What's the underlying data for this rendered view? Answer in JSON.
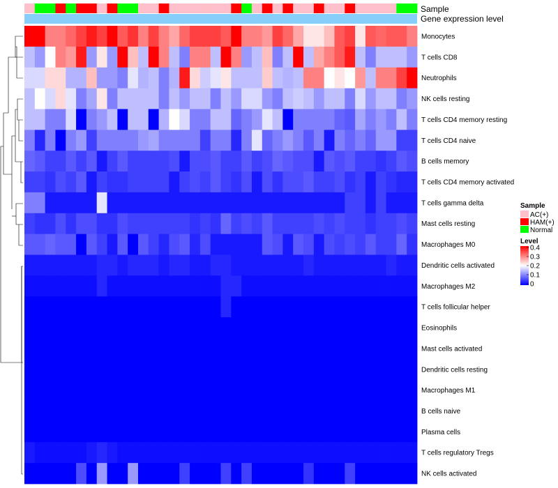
{
  "chart_data": {
    "type": "heatmap",
    "title": "",
    "annotation_labels": {
      "sample": "Sample",
      "expression": "Gene expression level"
    },
    "legend": {
      "sample_title": "Sample",
      "sample_entries": [
        {
          "label": "AC(+)",
          "color": "#ffc0cb"
        },
        {
          "label": "HAM(+)",
          "color": "#ff0000"
        },
        {
          "label": "Normal",
          "color": "#00ff00"
        }
      ],
      "level_title": "Level",
      "level_ticks": [
        "0.4",
        "0.3",
        "0.2",
        "0.1",
        "0"
      ],
      "level_range": [
        0,
        0.4
      ],
      "colors": {
        "low": "#0000ff",
        "mid": "#ffffff",
        "high": "#ff0000",
        "expression_bar": "#87cefa"
      }
    },
    "samples": [
      "AC",
      "N",
      "N",
      "H",
      "N",
      "H",
      "H",
      "AC",
      "H",
      "N",
      "N",
      "AC",
      "AC",
      "H",
      "AC",
      "AC",
      "AC",
      "AC",
      "AC",
      "AC",
      "H",
      "N",
      "AC",
      "H",
      "AC",
      "H",
      "AC",
      "AC",
      "H",
      "AC",
      "AC",
      "H",
      "AC",
      "AC",
      "AC",
      "AC",
      "N",
      "N"
    ],
    "rows": [
      "Monocytes",
      "T cells CD8",
      "Neutrophils",
      "NK cells resting",
      "T cells CD4 memory resting",
      "T cells CD4 naive",
      "B cells memory",
      "T cells CD4 memory activated",
      "T cells gamma delta",
      "Mast cells resting",
      "Macrophages M0",
      "Dendritic cells activated",
      "Macrophages M2",
      "T cells follicular helper",
      "Eosinophils",
      "Mast cells activated",
      "Dendritic cells resting",
      "Macrophages M1",
      "B cells naive",
      "Plasma cells",
      "T cells regulatory  Tregs",
      "NK cells activated"
    ],
    "values": [
      [
        0.4,
        0.4,
        0.3,
        0.3,
        0.32,
        0.35,
        0.38,
        0.35,
        0.4,
        0.33,
        0.36,
        0.3,
        0.35,
        0.3,
        0.27,
        0.32,
        0.35,
        0.35,
        0.35,
        0.33,
        0.4,
        0.3,
        0.3,
        0.28,
        0.35,
        0.32,
        0.27,
        0.22,
        0.22,
        0.25,
        0.33,
        0.35,
        0.22,
        0.33,
        0.32,
        0.33,
        0.33,
        0.3
      ],
      [
        0.15,
        0.12,
        0.2,
        0.3,
        0.28,
        0.38,
        0.12,
        0.22,
        0.12,
        0.4,
        0.25,
        0.15,
        0.4,
        0.3,
        0.15,
        0.1,
        0.3,
        0.3,
        0.15,
        0.4,
        0.3,
        0.12,
        0.15,
        0.25,
        0.1,
        0.15,
        0.4,
        0.15,
        0.27,
        0.3,
        0.33,
        0.38,
        0.15,
        0.1,
        0.15,
        0.15,
        0.15,
        0.12
      ],
      [
        0.17,
        0.17,
        0.23,
        0.23,
        0.14,
        0.14,
        0.25,
        0.12,
        0.12,
        0.1,
        0.18,
        0.14,
        0.15,
        0.1,
        0.14,
        0.38,
        0.23,
        0.16,
        0.18,
        0.22,
        0.15,
        0.15,
        0.15,
        0.24,
        0.15,
        0.14,
        0.15,
        0.3,
        0.3,
        0.2,
        0.22,
        0.2,
        0.28,
        0.15,
        0.3,
        0.3,
        0.35,
        0.4
      ],
      [
        0.15,
        0.2,
        0.17,
        0.23,
        0.18,
        0.1,
        0.13,
        0.22,
        0.1,
        0.15,
        0.15,
        0.15,
        0.15,
        0.1,
        0.15,
        0.12,
        0.15,
        0.15,
        0.1,
        0.15,
        0.12,
        0.17,
        0.17,
        0.12,
        0.1,
        0.15,
        0.16,
        0.15,
        0.12,
        0.15,
        0.15,
        0.1,
        0.17,
        0.12,
        0.15,
        0.15,
        0.1,
        0.12
      ],
      [
        0.15,
        0.15,
        0.1,
        0.1,
        0.17,
        0,
        0.1,
        0.12,
        0.15,
        0,
        0.15,
        0.15,
        0,
        0.14,
        0.2,
        0.17,
        0.1,
        0.1,
        0.15,
        0.15,
        0.08,
        0.1,
        0.12,
        0.18,
        0.15,
        0,
        0.1,
        0.1,
        0.1,
        0.1,
        0.08,
        0.07,
        0.13,
        0.1,
        0.12,
        0.1,
        0.15,
        0.1
      ],
      [
        0.1,
        0.03,
        0.1,
        0,
        0.1,
        0.12,
        0.05,
        0.1,
        0.1,
        0.1,
        0.1,
        0.12,
        0.13,
        0.1,
        0.1,
        0.1,
        0.1,
        0.05,
        0.1,
        0.1,
        0.03,
        0.1,
        0.18,
        0.08,
        0.1,
        0.12,
        0.1,
        0.07,
        0.1,
        0.02,
        0.1,
        0.08,
        0.1,
        0.08,
        0.12,
        0.12,
        0.05,
        0.05
      ],
      [
        0.08,
        0.07,
        0.05,
        0.05,
        0.07,
        0.05,
        0.07,
        0.02,
        0.05,
        0.07,
        0.05,
        0.05,
        0.05,
        0.05,
        0.06,
        0.02,
        0.06,
        0.06,
        0.07,
        0.05,
        0.05,
        0.07,
        0.05,
        0.06,
        0.08,
        0.07,
        0.06,
        0.06,
        0.02,
        0.07,
        0.06,
        0.07,
        0.05,
        0.05,
        0.04,
        0.05,
        0.07,
        0.06
      ],
      [
        0.05,
        0.05,
        0.04,
        0.06,
        0.05,
        0.07,
        0.02,
        0.05,
        0.04,
        0.04,
        0.05,
        0.05,
        0.05,
        0.05,
        0.02,
        0.05,
        0.06,
        0.05,
        0.07,
        0.05,
        0.04,
        0.06,
        0.02,
        0.06,
        0.04,
        0.06,
        0.06,
        0.07,
        0.05,
        0.05,
        0.06,
        0.04,
        0.05,
        0.02,
        0.05,
        0.04,
        0.03,
        0.03
      ],
      [
        0.1,
        0.1,
        0.02,
        0.02,
        0.02,
        0.02,
        0.02,
        0.18,
        0.02,
        0.02,
        0.02,
        0.02,
        0.02,
        0.02,
        0.02,
        0.02,
        0.02,
        0.02,
        0.02,
        0.02,
        0.02,
        0.02,
        0.02,
        0.02,
        0.02,
        0.02,
        0.02,
        0.02,
        0.02,
        0.02,
        0.02,
        0.05,
        0.05,
        0.02,
        0.05,
        0.02,
        0.02,
        0.02
      ],
      [
        0.05,
        0.04,
        0.04,
        0.06,
        0.04,
        0.06,
        0.06,
        0.04,
        0.04,
        0.06,
        0.05,
        0.05,
        0.05,
        0.05,
        0.05,
        0.05,
        0.04,
        0.05,
        0.04,
        0.08,
        0.05,
        0.06,
        0.05,
        0.07,
        0.05,
        0.05,
        0.05,
        0.05,
        0.06,
        0.05,
        0.06,
        0.05,
        0.05,
        0.04,
        0.05,
        0.05,
        0.06,
        0.05
      ],
      [
        0.07,
        0.07,
        0.08,
        0.07,
        0.07,
        0,
        0.07,
        0.05,
        0.02,
        0.07,
        0,
        0.07,
        0.05,
        0.03,
        0.06,
        0.07,
        0.03,
        0.06,
        0.02,
        0.02,
        0.02,
        0.02,
        0.02,
        0.07,
        0.06,
        0.02,
        0.07,
        0.06,
        0.02,
        0.06,
        0.05,
        0.06,
        0.05,
        0.07,
        0.05,
        0.05,
        0.08,
        0.04
      ],
      [
        0.02,
        0.02,
        0.02,
        0.02,
        0.02,
        0.02,
        0.02,
        0.03,
        0.03,
        0.02,
        0.03,
        0.03,
        0.03,
        0.02,
        0.03,
        0.03,
        0.02,
        0.02,
        0.03,
        0.03,
        0.02,
        0.02,
        0.02,
        0.02,
        0.02,
        0.02,
        0.02,
        0.03,
        0.02,
        0.02,
        0.02,
        0.02,
        0.02,
        0.02,
        0.02,
        0.03,
        0.02,
        0.02
      ],
      [
        0.01,
        0.01,
        0.01,
        0.01,
        0.01,
        0.01,
        0.01,
        0.03,
        0.01,
        0.01,
        0.01,
        0.01,
        0.01,
        0.01,
        0.01,
        0.01,
        0.01,
        0.01,
        0.01,
        0.03,
        0.03,
        0.01,
        0.01,
        0.01,
        0.01,
        0.01,
        0.01,
        0.01,
        0.01,
        0.01,
        0.01,
        0.01,
        0.01,
        0.01,
        0.01,
        0.01,
        0.01,
        0.01
      ],
      [
        0,
        0,
        0,
        0,
        0,
        0,
        0,
        0,
        0,
        0,
        0,
        0,
        0,
        0,
        0,
        0,
        0,
        0,
        0,
        0.03,
        0,
        0,
        0,
        0,
        0,
        0,
        0,
        0,
        0,
        0,
        0,
        0,
        0,
        0,
        0,
        0,
        0,
        0
      ],
      [
        0,
        0,
        0,
        0,
        0,
        0,
        0,
        0,
        0,
        0,
        0,
        0,
        0,
        0,
        0,
        0,
        0,
        0,
        0,
        0,
        0,
        0,
        0,
        0,
        0,
        0,
        0,
        0,
        0,
        0,
        0,
        0,
        0,
        0,
        0,
        0,
        0,
        0
      ],
      [
        0,
        0,
        0,
        0,
        0,
        0,
        0,
        0,
        0,
        0,
        0,
        0,
        0,
        0,
        0,
        0,
        0,
        0,
        0,
        0,
        0,
        0,
        0,
        0,
        0,
        0,
        0,
        0,
        0,
        0,
        0,
        0,
        0,
        0,
        0,
        0,
        0,
        0
      ],
      [
        0,
        0,
        0,
        0,
        0,
        0,
        0,
        0,
        0,
        0,
        0,
        0,
        0,
        0,
        0,
        0,
        0,
        0,
        0,
        0,
        0,
        0,
        0,
        0,
        0,
        0,
        0,
        0,
        0,
        0,
        0,
        0,
        0,
        0,
        0,
        0,
        0,
        0
      ],
      [
        0,
        0,
        0,
        0,
        0,
        0,
        0,
        0,
        0,
        0,
        0,
        0,
        0,
        0,
        0,
        0,
        0,
        0,
        0,
        0,
        0,
        0,
        0,
        0,
        0,
        0,
        0,
        0,
        0,
        0,
        0,
        0,
        0,
        0,
        0,
        0,
        0,
        0
      ],
      [
        0,
        0,
        0,
        0,
        0,
        0,
        0,
        0,
        0,
        0,
        0,
        0,
        0,
        0,
        0,
        0,
        0,
        0,
        0,
        0,
        0,
        0,
        0,
        0,
        0,
        0,
        0,
        0,
        0,
        0,
        0,
        0,
        0,
        0,
        0,
        0,
        0,
        0
      ],
      [
        0,
        0,
        0,
        0,
        0,
        0,
        0,
        0,
        0,
        0,
        0,
        0,
        0,
        0,
        0,
        0,
        0,
        0,
        0,
        0,
        0,
        0,
        0,
        0,
        0,
        0,
        0,
        0,
        0,
        0,
        0,
        0,
        0,
        0,
        0,
        0,
        0,
        0
      ],
      [
        0.02,
        0.01,
        0.01,
        0.01,
        0.01,
        0.01,
        0.02,
        0.03,
        0.02,
        0.01,
        0.01,
        0.01,
        0.01,
        0.01,
        0.01,
        0.01,
        0.01,
        0.01,
        0.01,
        0.01,
        0.01,
        0.01,
        0.01,
        0.01,
        0.01,
        0.01,
        0.01,
        0.01,
        0.01,
        0.01,
        0.01,
        0.01,
        0.01,
        0.01,
        0.01,
        0.01,
        0.01,
        0.01
      ],
      [
        0,
        0,
        0,
        0,
        0,
        0.06,
        0,
        0.12,
        0,
        0,
        0.12,
        0,
        0,
        0,
        0,
        0.05,
        0,
        0,
        0,
        0.05,
        0,
        0.05,
        0,
        0,
        0,
        0,
        0,
        0.04,
        0,
        0,
        0,
        0.05,
        0,
        0,
        0,
        0,
        0,
        0
      ]
    ]
  }
}
